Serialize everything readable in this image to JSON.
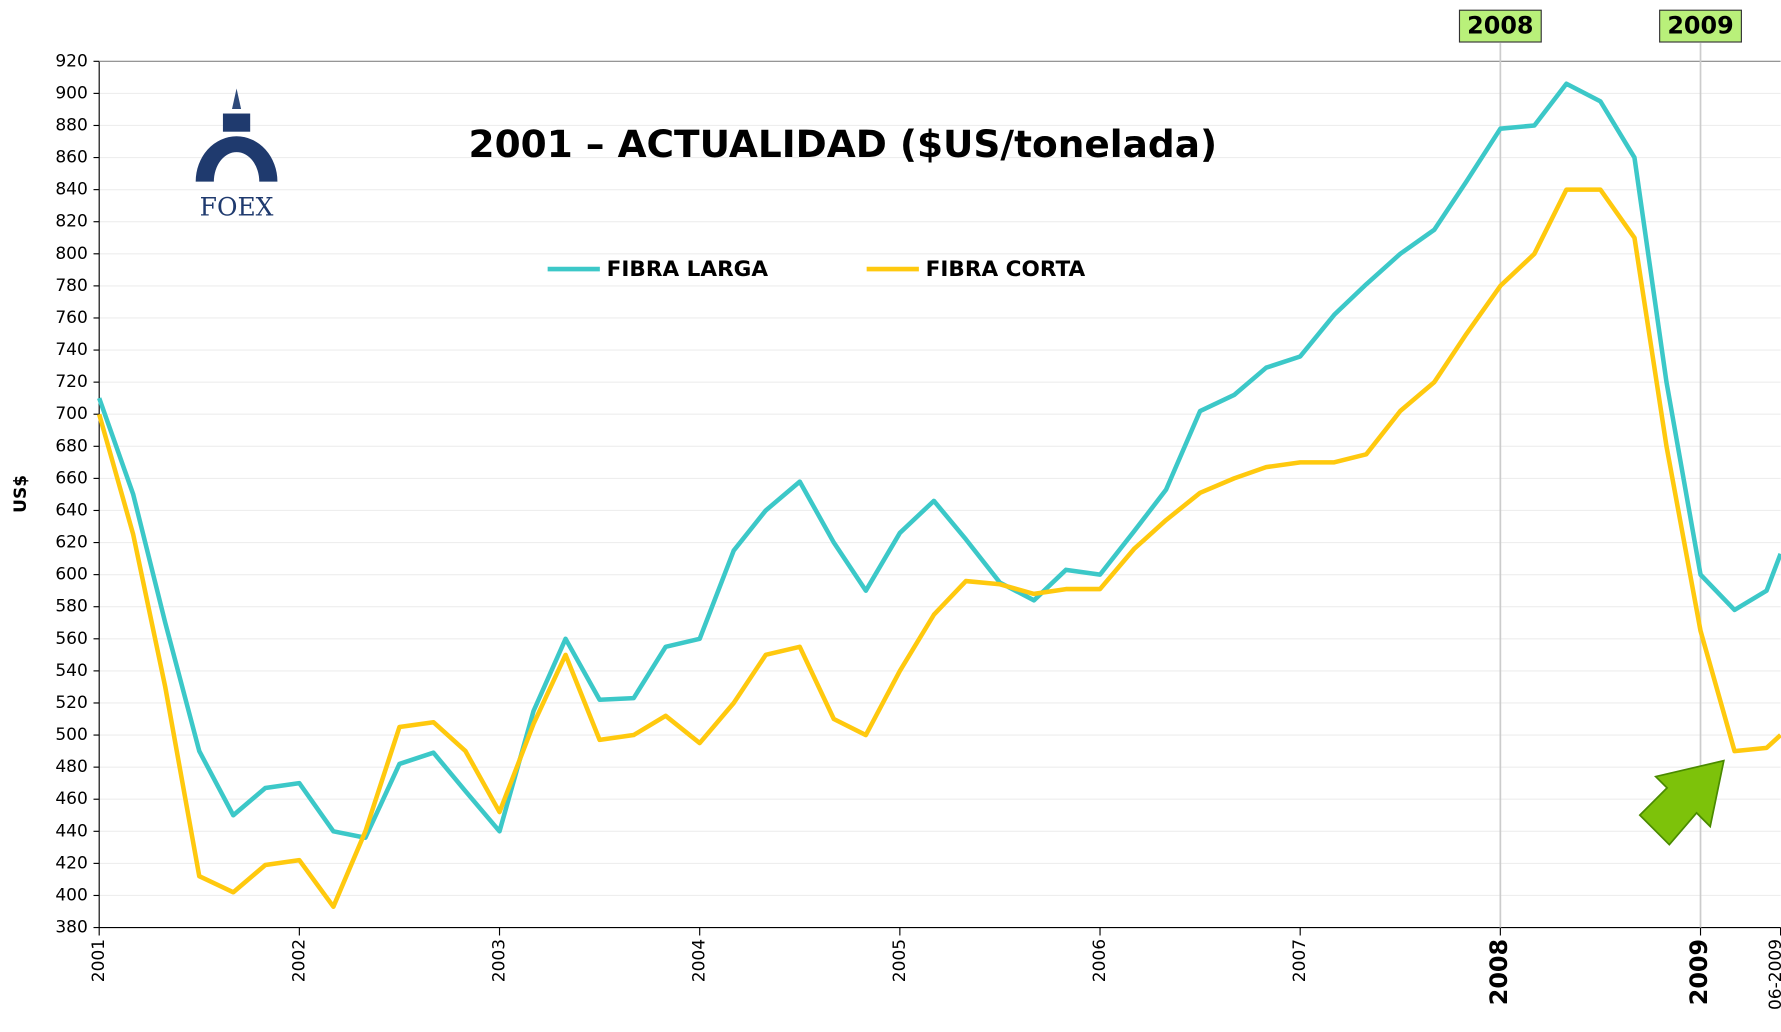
{
  "chart_data": {
    "type": "line",
    "title": "2001 – ACTUALIDAD ($US/tonelada)",
    "logo": "FOEX",
    "y_label": "US$",
    "x": [
      2001,
      2001.17,
      2001.33,
      2001.5,
      2001.67,
      2001.83,
      2002,
      2002.17,
      2002.33,
      2002.5,
      2002.67,
      2002.83,
      2003,
      2003.17,
      2003.33,
      2003.5,
      2003.67,
      2003.83,
      2004,
      2004.17,
      2004.33,
      2004.5,
      2004.67,
      2004.83,
      2005,
      2005.17,
      2005.33,
      2005.5,
      2005.67,
      2005.83,
      2006,
      2006.17,
      2006.33,
      2006.5,
      2006.67,
      2006.83,
      2007,
      2007.17,
      2007.33,
      2007.5,
      2007.67,
      2007.83,
      2008,
      2008.17,
      2008.33,
      2008.5,
      2008.67,
      2008.83,
      2009,
      2009.17,
      2009.33,
      2009.4
    ],
    "series": [
      {
        "name": "FIBRA LARGA",
        "color": "#3cc8c8",
        "values": [
          710,
          650,
          570,
          490,
          450,
          467,
          470,
          440,
          436,
          482,
          489,
          465,
          440,
          515,
          560,
          522,
          523,
          555,
          560,
          615,
          640,
          658,
          620,
          590,
          626,
          646,
          622,
          595,
          584,
          603,
          600,
          627,
          653,
          702,
          712,
          729,
          736,
          762,
          781,
          800,
          815,
          845,
          878,
          880,
          906,
          895,
          860,
          720,
          600,
          578,
          590,
          613
        ]
      },
      {
        "name": "FIBRA CORTA",
        "color": "#ffc90e",
        "values": [
          700,
          625,
          530,
          412,
          402,
          419,
          422,
          393,
          440,
          505,
          508,
          490,
          452,
          507,
          550,
          497,
          500,
          512,
          495,
          520,
          550,
          555,
          510,
          500,
          540,
          575,
          596,
          594,
          588,
          591,
          591,
          616,
          634,
          651,
          660,
          667,
          670,
          670,
          675,
          702,
          720,
          750,
          780,
          800,
          840,
          840,
          810,
          680,
          565,
          490,
          492,
          500
        ]
      }
    ],
    "xlim": [
      2001,
      2009.4
    ],
    "xticks": [
      2001,
      2002,
      2003,
      2004,
      2005,
      2006,
      2007,
      2008,
      2009,
      {
        "value": 2009.4,
        "label": "06-2009"
      }
    ],
    "ylim": [
      380,
      920
    ],
    "yticks": [
      380,
      400,
      420,
      440,
      460,
      480,
      500,
      520,
      540,
      560,
      580,
      600,
      620,
      640,
      660,
      680,
      700,
      720,
      740,
      760,
      780,
      800,
      820,
      840,
      860,
      880,
      900,
      920
    ],
    "grid": true,
    "annotations": [
      {
        "text": "2008",
        "x": 2008
      },
      {
        "text": "2009",
        "x": 2009
      }
    ]
  }
}
